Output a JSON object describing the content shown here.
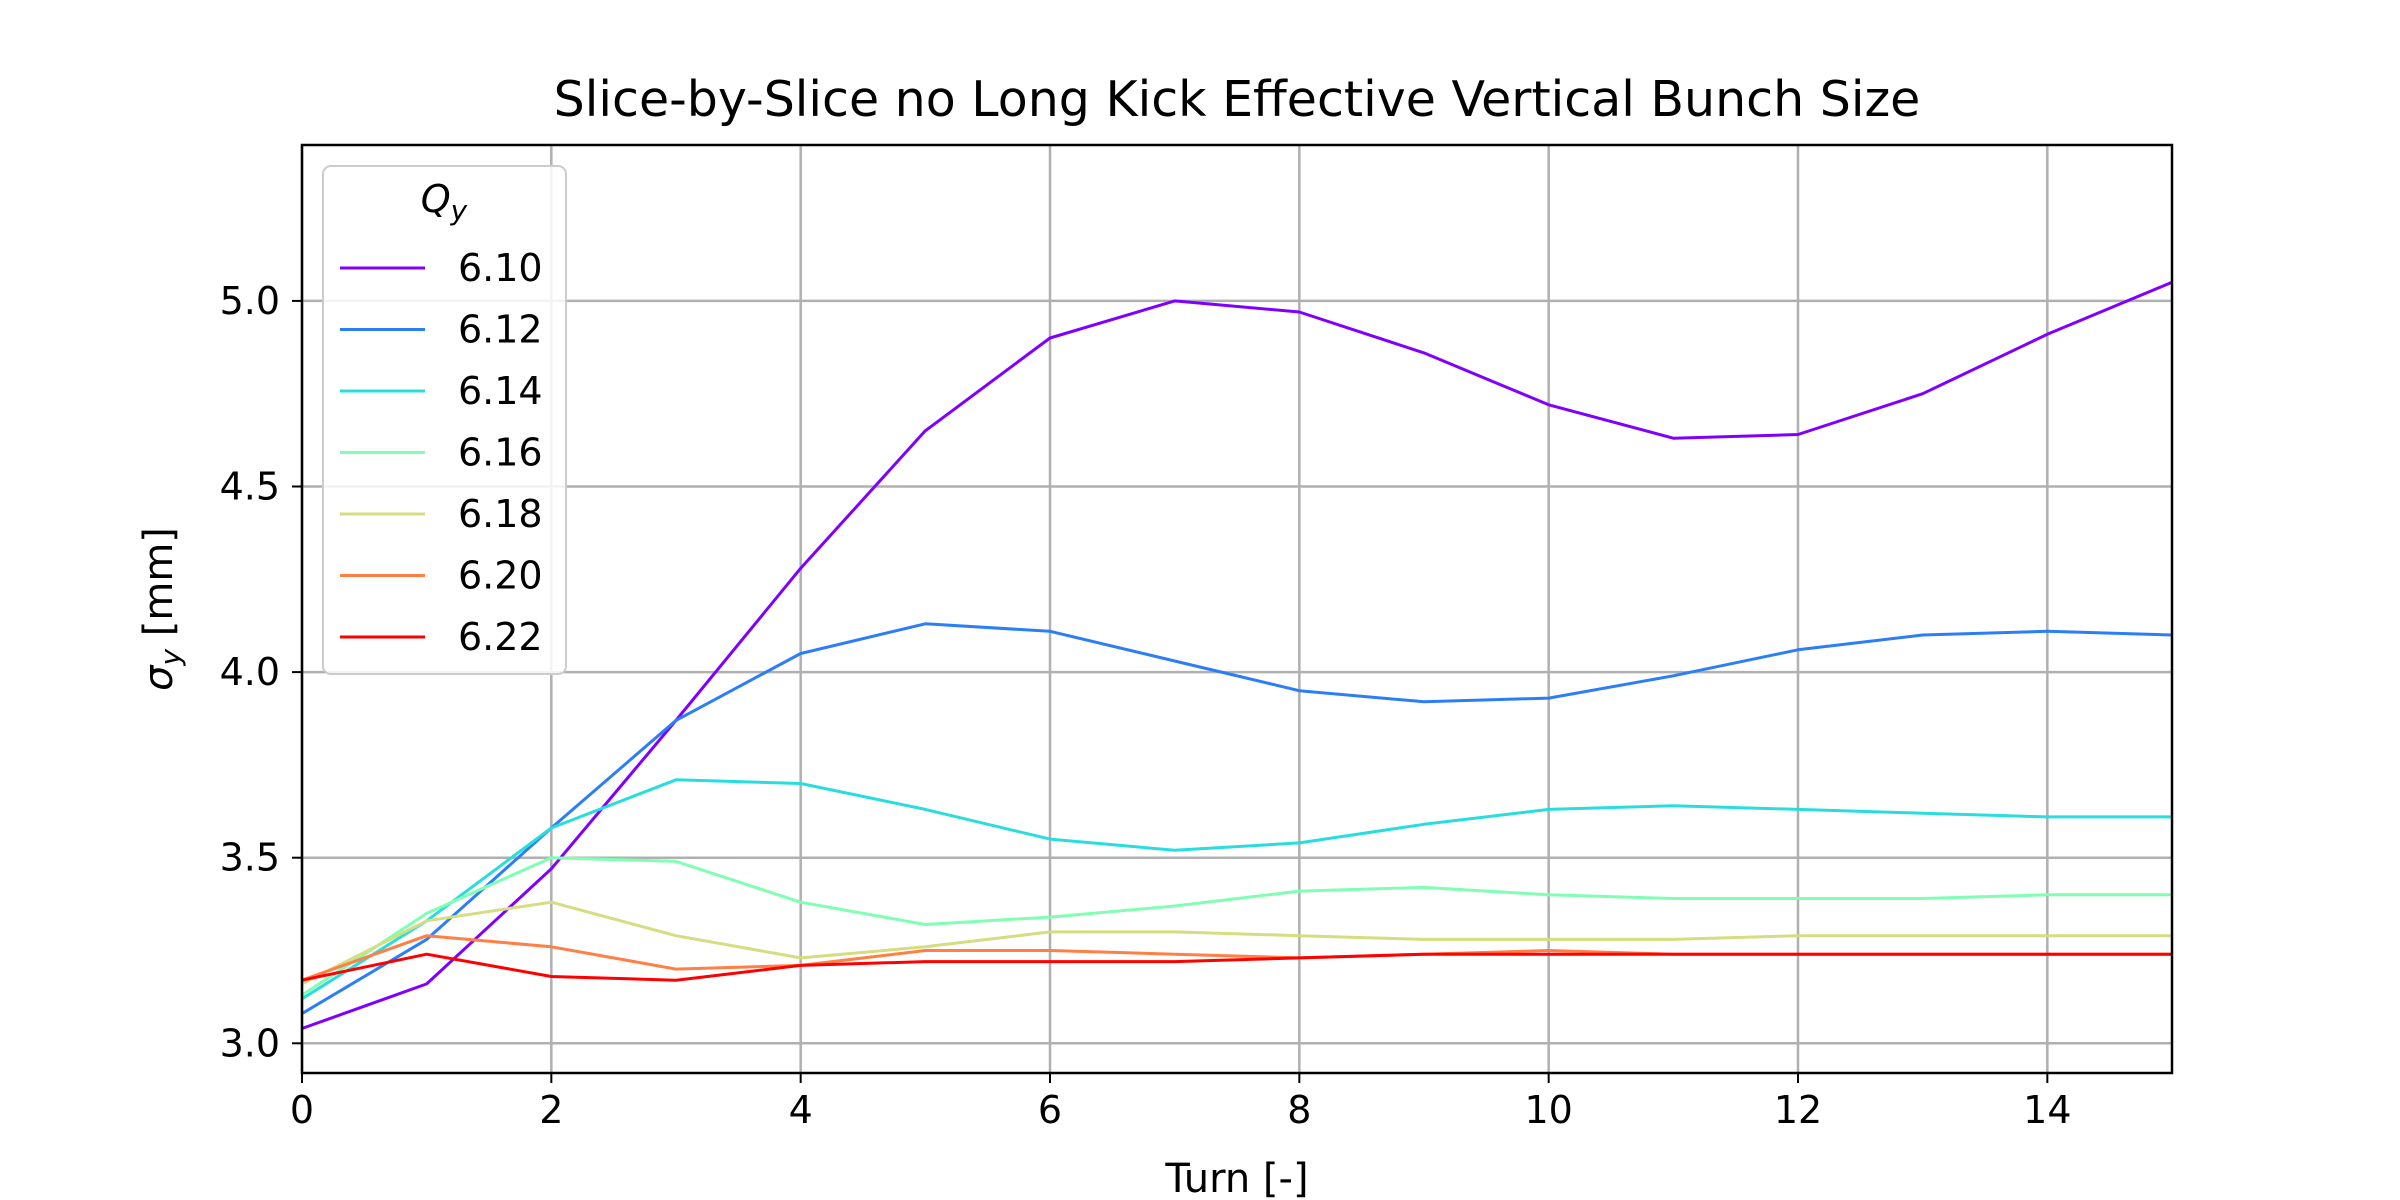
{
  "chart_data": {
    "type": "line",
    "title": "Slice-by-Slice no Long Kick Effective Vertical Bunch Size",
    "xlabel": "Turn [-]",
    "ylabel_symbol": "σ",
    "ylabel_sub": "y",
    "ylabel_unit": " [mm]",
    "xlim": [
      0,
      15
    ],
    "ylim": [
      2.92,
      5.42
    ],
    "xticks": [
      0,
      2,
      4,
      6,
      8,
      10,
      12,
      14
    ],
    "xtick_labels": [
      "0",
      "2",
      "4",
      "6",
      "8",
      "10",
      "12",
      "14"
    ],
    "yticks": [
      3.0,
      3.5,
      4.0,
      4.5,
      5.0
    ],
    "ytick_labels": [
      "3.0",
      "3.5",
      "4.0",
      "4.5",
      "5.0"
    ],
    "grid": true,
    "legend": {
      "placement": "top-left",
      "title_symbol": "Q",
      "title_sub": "y"
    },
    "x": [
      0,
      1,
      2,
      3,
      4,
      5,
      6,
      7,
      8,
      9,
      10,
      11,
      12,
      13,
      14,
      15
    ],
    "series": [
      {
        "name": "6.10",
        "color": "#8000ff",
        "values": [
          3.04,
          3.16,
          3.47,
          3.87,
          4.28,
          4.65,
          4.9,
          5.0,
          4.97,
          4.86,
          4.72,
          4.63,
          4.64,
          4.75,
          4.91,
          5.05
        ]
      },
      {
        "name": "6.12",
        "color": "#2c7ef7",
        "values": [
          3.08,
          3.28,
          3.58,
          3.87,
          4.05,
          4.13,
          4.11,
          4.03,
          3.95,
          3.92,
          3.93,
          3.99,
          4.06,
          4.1,
          4.11,
          4.1
        ]
      },
      {
        "name": "6.14",
        "color": "#2adddd",
        "values": [
          3.12,
          3.33,
          3.58,
          3.71,
          3.7,
          3.63,
          3.55,
          3.52,
          3.54,
          3.59,
          3.63,
          3.64,
          3.63,
          3.62,
          3.61,
          3.61
        ]
      },
      {
        "name": "6.16",
        "color": "#80ffb4",
        "values": [
          3.13,
          3.35,
          3.5,
          3.49,
          3.38,
          3.32,
          3.34,
          3.37,
          3.41,
          3.42,
          3.4,
          3.39,
          3.39,
          3.39,
          3.4,
          3.4
        ]
      },
      {
        "name": "6.18",
        "color": "#d4dd80",
        "values": [
          3.16,
          3.33,
          3.38,
          3.29,
          3.23,
          3.26,
          3.3,
          3.3,
          3.29,
          3.28,
          3.28,
          3.28,
          3.29,
          3.29,
          3.29,
          3.29
        ]
      },
      {
        "name": "6.20",
        "color": "#ff7f45",
        "values": [
          3.17,
          3.29,
          3.26,
          3.2,
          3.21,
          3.25,
          3.25,
          3.24,
          3.23,
          3.24,
          3.25,
          3.24,
          3.24,
          3.24,
          3.24,
          3.24
        ]
      },
      {
        "name": "6.22",
        "color": "#ff0000",
        "values": [
          3.17,
          3.24,
          3.18,
          3.17,
          3.21,
          3.22,
          3.22,
          3.22,
          3.23,
          3.24,
          3.24,
          3.24,
          3.24,
          3.24,
          3.24,
          3.24
        ]
      }
    ]
  }
}
